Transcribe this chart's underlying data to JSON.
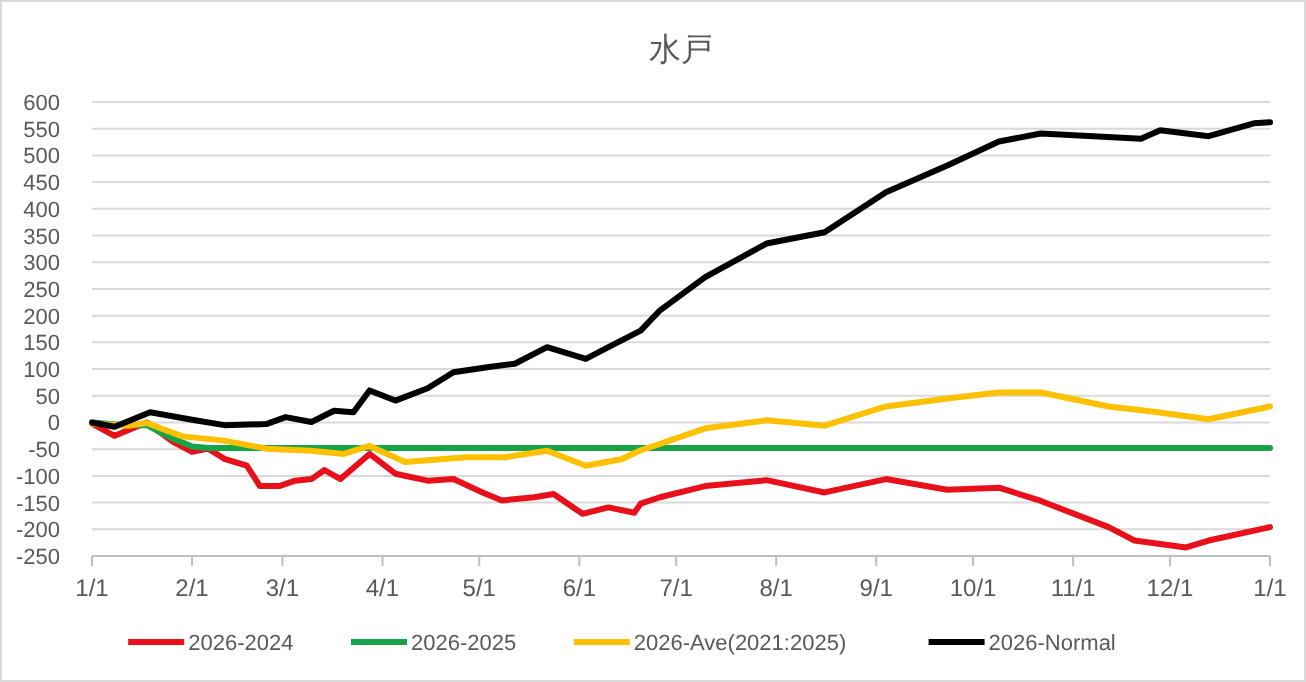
{
  "chart_data": {
    "type": "line",
    "title": "水戸",
    "xlim": [
      "2026-01-01",
      "2027-01-01"
    ],
    "xticks": [
      {
        "value": "2026-01-01",
        "label": "1/1"
      },
      {
        "value": "2026-02-01",
        "label": "2/1"
      },
      {
        "value": "2026-03-01",
        "label": "3/1"
      },
      {
        "value": "2026-04-01",
        "label": "4/1"
      },
      {
        "value": "2026-05-01",
        "label": "5/1"
      },
      {
        "value": "2026-06-01",
        "label": "6/1"
      },
      {
        "value": "2026-07-01",
        "label": "7/1"
      },
      {
        "value": "2026-08-01",
        "label": "8/1"
      },
      {
        "value": "2026-09-01",
        "label": "9/1"
      },
      {
        "value": "2026-10-01",
        "label": "10/1"
      },
      {
        "value": "2026-11-01",
        "label": "11/1"
      },
      {
        "value": "2026-12-01",
        "label": "12/1"
      },
      {
        "value": "2027-01-01",
        "label": "1/1"
      }
    ],
    "ylim": [
      -250,
      600
    ],
    "yticks": [
      -250,
      -200,
      -150,
      -100,
      -50,
      0,
      50,
      100,
      150,
      200,
      250,
      300,
      350,
      400,
      450,
      500,
      550,
      600
    ],
    "grid": "y",
    "legend": "bottom",
    "line_style": "solid",
    "series": [
      {
        "name": "2026-2024",
        "color": "#e8101a",
        "x": [
          "2026-01-01",
          "2026-01-08",
          "2026-01-18",
          "2026-01-26",
          "2026-02-01",
          "2026-02-06",
          "2026-02-11",
          "2026-02-18",
          "2026-02-22",
          "2026-02-28",
          "2026-03-05",
          "2026-03-10",
          "2026-03-14",
          "2026-03-19",
          "2026-03-28",
          "2026-04-05",
          "2026-04-15",
          "2026-04-23",
          "2026-05-02",
          "2026-05-08",
          "2026-05-18",
          "2026-05-24",
          "2026-06-02",
          "2026-06-10",
          "2026-06-18",
          "2026-06-20",
          "2026-06-26",
          "2026-07-10",
          "2026-07-29",
          "2026-08-16",
          "2026-09-04",
          "2026-09-23",
          "2026-10-09",
          "2026-10-22",
          "2026-11-12",
          "2026-11-20",
          "2026-12-06",
          "2026-12-13",
          "2027-01-01"
        ],
        "values": [
          -2,
          -25,
          0,
          -36,
          -55,
          -49,
          -68,
          -81,
          -119,
          -119,
          -109,
          -106,
          -89,
          -106,
          -59,
          -96,
          -109,
          -106,
          -131,
          -146,
          -140,
          -134,
          -171,
          -159,
          -169,
          -152,
          -140,
          -119,
          -108,
          -131,
          -106,
          -126,
          -122,
          -147,
          -196,
          -221,
          -234,
          -221,
          -196
        ]
      },
      {
        "name": "2026-2025",
        "color": "#16a34a",
        "x": [
          "2026-01-01",
          "2026-01-11",
          "2026-01-18",
          "2026-01-26",
          "2026-02-01",
          "2026-02-06",
          "2027-01-01"
        ],
        "values": [
          0,
          -5,
          -5,
          -30,
          -45,
          -48,
          -48
        ]
      },
      {
        "name": "2026-Ave(2021:2025)",
        "color": "#ffc000",
        "x": [
          "2026-01-01",
          "2026-01-12",
          "2026-01-18",
          "2026-01-29",
          "2026-02-11",
          "2026-02-24",
          "2026-03-10",
          "2026-03-20",
          "2026-03-28",
          "2026-04-08",
          "2026-04-27",
          "2026-05-09",
          "2026-05-22",
          "2026-06-03",
          "2026-06-14",
          "2026-06-20",
          "2026-06-26",
          "2026-07-10",
          "2026-07-29",
          "2026-08-16",
          "2026-09-04",
          "2026-09-23",
          "2026-10-09",
          "2026-10-22",
          "2026-11-12",
          "2026-11-26",
          "2026-12-13",
          "2027-01-01"
        ],
        "values": [
          -2,
          -6,
          -1,
          -26,
          -34,
          -49,
          -53,
          -59,
          -44,
          -74,
          -65,
          -65,
          -53,
          -81,
          -69,
          -52,
          -40,
          -11,
          4,
          -6,
          30,
          45,
          56,
          56,
          30,
          20,
          6,
          30
        ]
      },
      {
        "name": "2026-Normal",
        "color": "#000000",
        "x": [
          "2026-01-01",
          "2026-01-08",
          "2026-01-19",
          "2026-02-01",
          "2026-02-11",
          "2026-02-24",
          "2026-03-02",
          "2026-03-10",
          "2026-03-17",
          "2026-03-23",
          "2026-03-28",
          "2026-04-05",
          "2026-04-15",
          "2026-04-23",
          "2026-05-04",
          "2026-05-12",
          "2026-05-22",
          "2026-06-03",
          "2026-06-10",
          "2026-06-20",
          "2026-06-26",
          "2026-07-10",
          "2026-07-29",
          "2026-08-16",
          "2026-09-04",
          "2026-09-23",
          "2026-10-09",
          "2026-10-22",
          "2026-11-22",
          "2026-11-28",
          "2026-12-13",
          "2026-12-27",
          "2027-01-01"
        ],
        "values": [
          0,
          -8,
          19,
          5,
          -5,
          -3,
          10,
          1,
          22,
          19,
          60,
          41,
          64,
          94,
          104,
          110,
          141,
          119,
          141,
          172,
          210,
          272,
          335,
          356,
          431,
          481,
          526,
          541,
          531,
          547,
          536,
          560,
          562
        ]
      }
    ]
  }
}
